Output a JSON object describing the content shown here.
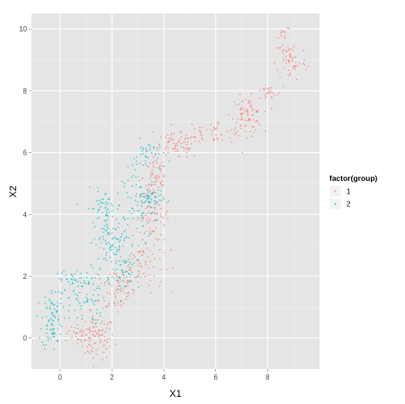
{
  "chart_data": {
    "type": "scatter",
    "xlabel": "X1",
    "ylabel": "X2",
    "xlim": [
      -1.1,
      10.0
    ],
    "ylim": [
      -1.0,
      10.5
    ],
    "x_ticks": [
      0,
      2,
      4,
      6,
      8
    ],
    "y_ticks": [
      0,
      2,
      4,
      6,
      8,
      10
    ],
    "x_tick_labels": [
      "0",
      "2",
      "4",
      "6",
      "8"
    ],
    "y_tick_labels": [
      "0",
      "2",
      "4",
      "6",
      "8",
      "10"
    ],
    "grid": true,
    "legend": {
      "title": "factor(group)",
      "position": "right",
      "entries": [
        "1",
        "2"
      ]
    },
    "series": [
      {
        "name": "1",
        "color": "#F8766D",
        "clusters": [
          {
            "x": 1.4,
            "y": 0.0,
            "sx": 0.35,
            "sy": 0.35,
            "n": 90
          },
          {
            "x": 0.8,
            "y": 0.1,
            "sx": 0.3,
            "sy": 0.12,
            "n": 25
          },
          {
            "x": 2.2,
            "y": 1.6,
            "sx": 0.35,
            "sy": 0.45,
            "n": 60
          },
          {
            "x": 3.1,
            "y": 2.4,
            "sx": 0.45,
            "sy": 0.45,
            "n": 75
          },
          {
            "x": 3.6,
            "y": 4.0,
            "sx": 0.3,
            "sy": 0.45,
            "n": 70
          },
          {
            "x": 3.7,
            "y": 5.2,
            "sx": 0.25,
            "sy": 0.45,
            "n": 55
          },
          {
            "x": 4.5,
            "y": 6.2,
            "sx": 0.45,
            "sy": 0.2,
            "n": 65
          },
          {
            "x": 6.0,
            "y": 6.7,
            "sx": 0.6,
            "sy": 0.2,
            "n": 50
          },
          {
            "x": 7.2,
            "y": 7.2,
            "sx": 0.3,
            "sy": 0.3,
            "n": 80
          },
          {
            "x": 8.0,
            "y": 7.9,
            "sx": 0.3,
            "sy": 0.12,
            "n": 25
          },
          {
            "x": 8.9,
            "y": 9.0,
            "sx": 0.3,
            "sy": 0.35,
            "n": 60
          },
          {
            "x": 8.6,
            "y": 9.9,
            "sx": 0.15,
            "sy": 0.15,
            "n": 12
          }
        ]
      },
      {
        "name": "2",
        "color": "#00BFC4",
        "clusters": [
          {
            "x": -0.3,
            "y": 0.6,
            "sx": 0.2,
            "sy": 0.5,
            "n": 85
          },
          {
            "x": 0.4,
            "y": 1.9,
            "sx": 0.4,
            "sy": 0.12,
            "n": 30
          },
          {
            "x": 0.9,
            "y": 1.3,
            "sx": 0.45,
            "sy": 0.45,
            "n": 80
          },
          {
            "x": 2.1,
            "y": 3.0,
            "sx": 0.4,
            "sy": 0.5,
            "n": 100
          },
          {
            "x": 1.7,
            "y": 4.2,
            "sx": 0.35,
            "sy": 0.3,
            "n": 55
          },
          {
            "x": 2.5,
            "y": 2.0,
            "sx": 0.3,
            "sy": 0.3,
            "n": 40
          },
          {
            "x": 3.1,
            "y": 4.3,
            "sx": 0.35,
            "sy": 0.6,
            "n": 70
          },
          {
            "x": 3.5,
            "y": 4.5,
            "sx": 0.25,
            "sy": 0.2,
            "n": 50
          },
          {
            "x": 3.4,
            "y": 5.9,
            "sx": 0.3,
            "sy": 0.25,
            "n": 40
          }
        ]
      }
    ]
  }
}
